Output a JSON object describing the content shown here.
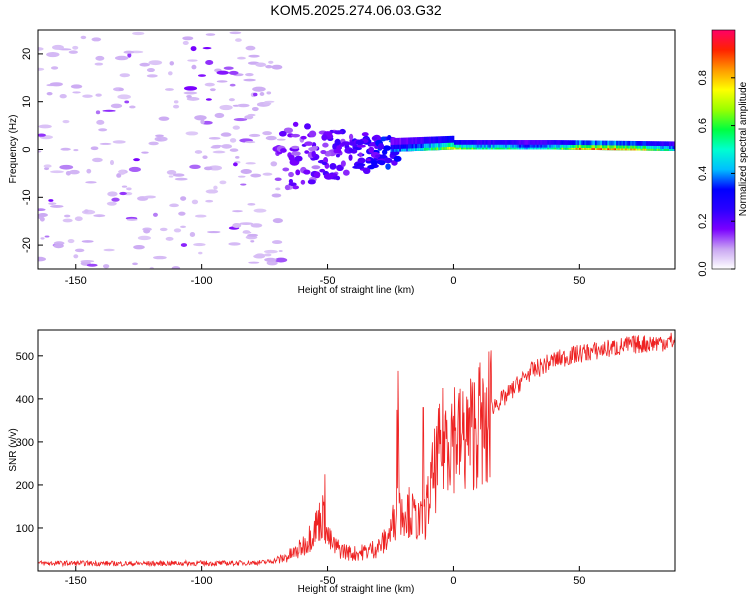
{
  "chart_data": [
    {
      "type": "heatmap",
      "title": "KOM5.2025.274.06.03.G32",
      "xlabel": "Height of straight line (km)",
      "ylabel": "Frequency (Hz)",
      "xlim": [
        -165,
        88
      ],
      "ylim": [
        -25,
        25
      ],
      "x_ticks": [
        -150,
        -100,
        -50,
        0,
        50
      ],
      "x_tick_labels": [
        "-150",
        "-100",
        "-50",
        "0",
        "50"
      ],
      "y_ticks": [
        -20,
        -10,
        0,
        10,
        20
      ],
      "y_tick_labels": [
        "-20",
        "-10",
        "0",
        "10",
        "20"
      ],
      "colorbar": {
        "label": "Normalized spectral amplitude",
        "range": [
          0,
          1
        ],
        "ticks": [
          0.0,
          0.2,
          0.4,
          0.6,
          0.8
        ],
        "tick_labels": [
          "0.0",
          "0.2",
          "0.4",
          "0.6",
          "0.8"
        ],
        "colormap": [
          "#ffffff",
          "#c9a6f2",
          "#7a00ff",
          "#2a00ff",
          "#0000ff",
          "#00bfff",
          "#00ffd0",
          "#00ff40",
          "#9aff00",
          "#ffff00",
          "#ff9900",
          "#ff2200",
          "#ff0066"
        ]
      },
      "signal_center_frequency": [
        {
          "x": -65,
          "f": -1.5
        },
        {
          "x": -40,
          "f": -0.8
        },
        {
          "x": -20,
          "f": -0.4
        },
        {
          "x": 0,
          "f": 0.0
        },
        {
          "x": 40,
          "f": 0.0
        },
        {
          "x": 88,
          "f": -0.3
        }
      ],
      "signal_amplitude": [
        {
          "x": -65,
          "a": 0.18
        },
        {
          "x": -45,
          "a": 0.22
        },
        {
          "x": -25,
          "a": 0.35
        },
        {
          "x": -10,
          "a": 0.55
        },
        {
          "x": 0,
          "a": 0.75
        },
        {
          "x": 10,
          "a": 0.55
        },
        {
          "x": 20,
          "a": 0.6
        },
        {
          "x": 30,
          "a": 0.45
        },
        {
          "x": 40,
          "a": 0.55
        },
        {
          "x": 50,
          "a": 0.85
        },
        {
          "x": 65,
          "a": 0.9
        },
        {
          "x": 80,
          "a": 0.65
        },
        {
          "x": 88,
          "a": 0.5
        }
      ]
    },
    {
      "type": "line",
      "xlabel": "Height of straight line (km)",
      "ylabel": "SNR (v/v)",
      "xlim": [
        -165,
        88
      ],
      "ylim": [
        0,
        560
      ],
      "x_ticks": [
        -150,
        -100,
        -50,
        0,
        50
      ],
      "x_tick_labels": [
        "-150",
        "-100",
        "-50",
        "0",
        "50"
      ],
      "y_ticks": [
        100,
        200,
        300,
        400,
        500
      ],
      "y_tick_labels": [
        "100",
        "200",
        "300",
        "400",
        "500"
      ],
      "color": "#ee2222",
      "series": [
        {
          "name": "SNR",
          "x": [
            -165,
            -150,
            -130,
            -110,
            -90,
            -75,
            -68,
            -62,
            -58,
            -55,
            -52,
            -50,
            -48,
            -45,
            -40,
            -35,
            -30,
            -27,
            -25,
            -23,
            -22,
            -21,
            -20,
            -18,
            -15,
            -12,
            -10,
            -8,
            -5,
            -3,
            0,
            3,
            5,
            8,
            10,
            12,
            13,
            14,
            15,
            17,
            20,
            25,
            30,
            40,
            50,
            60,
            70,
            80,
            88
          ],
          "values": [
            18,
            18,
            17,
            18,
            18,
            20,
            28,
            45,
            70,
            100,
            130,
            80,
            60,
            50,
            40,
            45,
            55,
            70,
            90,
            130,
            380,
            110,
            150,
            140,
            120,
            110,
            160,
            220,
            280,
            320,
            330,
            300,
            310,
            330,
            350,
            330,
            290,
            330,
            380,
            390,
            400,
            430,
            460,
            490,
            505,
            515,
            525,
            530,
            535
          ]
        }
      ],
      "spikes": [
        {
          "x": -51,
          "y": 225
        },
        {
          "x": -22,
          "y": 465
        },
        {
          "x": -12,
          "y": 380
        },
        {
          "x": 14,
          "y": 510
        }
      ]
    }
  ]
}
